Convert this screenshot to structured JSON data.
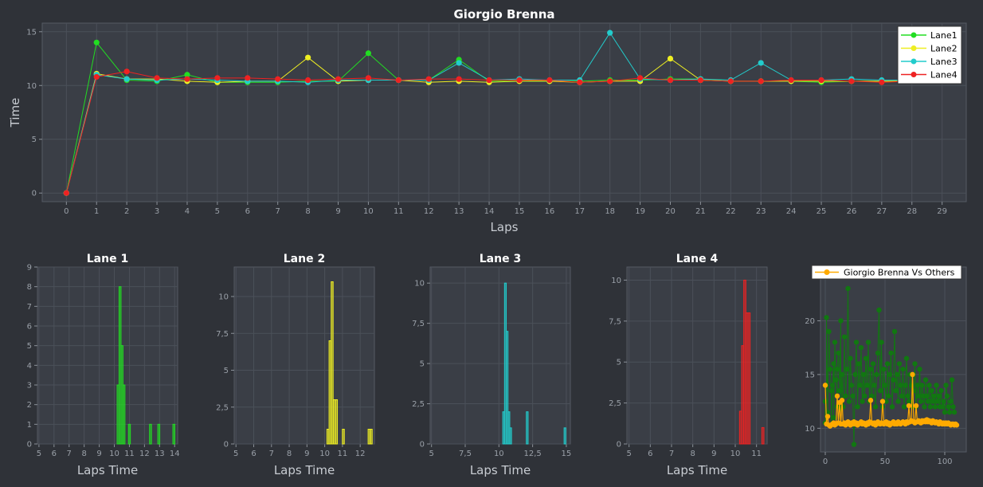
{
  "colors": {
    "background": "#2f3238",
    "plot_bg": "#3a3e46",
    "grid": "#4b5059",
    "lane1": "#22dd22",
    "lane2": "#eeee22",
    "lane3": "#22cccc",
    "lane4": "#ee2222",
    "others": "#117711",
    "highlight": "#ffaa00"
  },
  "chart_data": [
    {
      "id": "main",
      "type": "line",
      "title": "Giorgio Brenna",
      "xlabel": "Laps",
      "ylabel": "Time",
      "xlim": [
        -0.8,
        29.8
      ],
      "ylim": [
        -0.8,
        15.8
      ],
      "xticks": [
        "0",
        "1",
        "2",
        "3",
        "4",
        "5",
        "6",
        "7",
        "8",
        "9",
        "10",
        "11",
        "12",
        "13",
        "14",
        "15",
        "16",
        "17",
        "18",
        "19",
        "20",
        "21",
        "22",
        "23",
        "24",
        "25",
        "26",
        "27",
        "28",
        "29"
      ],
      "yticks": [
        "0",
        "5",
        "10",
        "15"
      ],
      "grid": true,
      "legend": "top-right",
      "x": [
        0,
        1,
        2,
        3,
        4,
        5,
        6,
        7,
        8,
        9,
        10,
        11,
        12,
        13,
        14,
        15,
        16,
        17,
        18,
        19,
        20,
        21,
        22,
        23,
        24,
        25,
        26,
        27,
        28,
        29
      ],
      "series": [
        {
          "name": "Lane1",
          "color": "#22dd22",
          "values": [
            0,
            14.0,
            10.5,
            10.4,
            11.0,
            10.3,
            10.3,
            10.3,
            10.4,
            10.4,
            13.0,
            10.5,
            10.5,
            12.4,
            10.4,
            10.5,
            10.4,
            10.4,
            10.5,
            10.5,
            10.6,
            10.6,
            10.4,
            10.4,
            10.4,
            10.3,
            10.4,
            10.4,
            10.4,
            10.4
          ]
        },
        {
          "name": "Lane2",
          "color": "#eeee22",
          "values": [
            0,
            11.1,
            10.6,
            10.6,
            10.4,
            10.3,
            10.4,
            10.4,
            12.6,
            10.4,
            10.5,
            10.5,
            10.3,
            10.4,
            10.3,
            10.4,
            10.4,
            10.3,
            10.4,
            10.4,
            12.5,
            10.5,
            10.4,
            10.4,
            10.4,
            10.4,
            10.4,
            10.4,
            10.4,
            10.4
          ]
        },
        {
          "name": "Lane3",
          "color": "#22cccc",
          "values": [
            0,
            11.0,
            10.6,
            10.5,
            10.6,
            10.5,
            10.4,
            10.4,
            10.3,
            10.5,
            10.5,
            10.5,
            10.5,
            12.1,
            10.5,
            10.6,
            10.5,
            10.5,
            14.9,
            10.6,
            10.5,
            10.6,
            10.5,
            12.1,
            10.5,
            10.5,
            10.6,
            10.5,
            10.5,
            10.5
          ]
        },
        {
          "name": "Lane4",
          "color": "#ee2222",
          "values": [
            0,
            10.8,
            11.3,
            10.7,
            10.6,
            10.7,
            10.7,
            10.6,
            10.5,
            10.6,
            10.7,
            10.5,
            10.6,
            10.6,
            10.5,
            10.5,
            10.5,
            10.3,
            10.4,
            10.7,
            10.5,
            10.5,
            10.4,
            10.4,
            10.5,
            10.5,
            10.4,
            10.3,
            10.4,
            10.4
          ]
        }
      ]
    },
    {
      "id": "lane1",
      "type": "bar",
      "title": "Lane 1",
      "xlabel": "Laps Time",
      "ylabel": "",
      "color": "#22dd22",
      "xlim": [
        4.9,
        14.2
      ],
      "ylim": [
        0,
        9
      ],
      "xticks": [
        "5",
        "6",
        "7",
        "8",
        "9",
        "10",
        "11",
        "12",
        "13",
        "14"
      ],
      "yticks": [
        "0",
        "1",
        "2",
        "3",
        "4",
        "5",
        "6",
        "7",
        "8",
        "9"
      ],
      "bar_width": 0.13,
      "bins": [
        10.25,
        10.38,
        10.51,
        10.64,
        11.0,
        12.4,
        12.95,
        13.95
      ],
      "values": [
        3,
        8,
        5,
        3,
        1,
        1,
        1,
        1
      ]
    },
    {
      "id": "lane2",
      "type": "bar",
      "title": "Lane 2",
      "xlabel": "Laps Time",
      "ylabel": "",
      "color": "#eeee22",
      "xlim": [
        4.9,
        12.8
      ],
      "ylim": [
        0,
        12
      ],
      "xticks": [
        "5",
        "6",
        "7",
        "8",
        "9",
        "10",
        "11",
        "12"
      ],
      "yticks": [
        "0",
        "2,5",
        "5",
        "7,5",
        "10"
      ],
      "ytick_values": [
        0,
        2.5,
        5,
        7.5,
        10
      ],
      "bar_width": 0.11,
      "bins": [
        10.18,
        10.3,
        10.42,
        10.54,
        10.66,
        11.05,
        12.5,
        12.62
      ],
      "values": [
        1,
        7,
        11,
        3,
        3,
        1,
        1,
        1
      ]
    },
    {
      "id": "lane3",
      "type": "bar",
      "title": "Lane 3",
      "xlabel": "Laps Time",
      "ylabel": "",
      "color": "#22cccc",
      "xlim": [
        4.9,
        15.3
      ],
      "ylim": [
        0,
        11
      ],
      "xticks": [
        "5",
        "7,5",
        "10",
        "12,5",
        "15"
      ],
      "xtick_values": [
        5,
        7.5,
        10,
        12.5,
        15
      ],
      "yticks": [
        "0",
        "2,5",
        "5",
        "7,5",
        "10"
      ],
      "ytick_values": [
        0,
        2.5,
        5,
        7.5,
        10
      ],
      "bar_width": 0.13,
      "bins": [
        10.35,
        10.48,
        10.61,
        10.74,
        10.87,
        12.1,
        14.9
      ],
      "values": [
        2,
        10,
        7,
        2,
        1,
        2,
        1
      ]
    },
    {
      "id": "lane4",
      "type": "bar",
      "title": "Lane 4",
      "xlabel": "Laps Time",
      "ylabel": "",
      "color": "#ee2222",
      "xlim": [
        4.9,
        11.5
      ],
      "ylim": [
        0,
        10.8
      ],
      "xticks": [
        "5",
        "6",
        "7",
        "8",
        "9",
        "10",
        "11"
      ],
      "yticks": [
        "0",
        "2,5",
        "5",
        "7,5",
        "10"
      ],
      "ytick_values": [
        0,
        2.5,
        5,
        7.5,
        10
      ],
      "bar_width": 0.1,
      "bins": [
        10.25,
        10.35,
        10.45,
        10.55,
        10.65,
        11.3
      ],
      "values": [
        2,
        6,
        10,
        8,
        8,
        1
      ]
    },
    {
      "id": "vs",
      "type": "scatter",
      "title": "",
      "xlabel": "",
      "ylabel": "",
      "legend": "top",
      "legend_label": "Giorgio Brenna Vs Others",
      "xlim": [
        -4,
        118
      ],
      "ylim": [
        7.8,
        25
      ],
      "xticks": [
        "0",
        "50",
        "100"
      ],
      "xtick_values": [
        0,
        50,
        100
      ],
      "yticks": [
        "10",
        "15",
        "20"
      ],
      "ytick_values": [
        10,
        15,
        20
      ],
      "others_color": "#117711",
      "others": [
        [
          0,
          10.5
        ],
        [
          0,
          12.5
        ],
        [
          1,
          14.0
        ],
        [
          1,
          20.3
        ],
        [
          2,
          11.5
        ],
        [
          3,
          19.0
        ],
        [
          4,
          15.5
        ],
        [
          5,
          13.5
        ],
        [
          5,
          10.3
        ],
        [
          6,
          14.0
        ],
        [
          7,
          16.0
        ],
        [
          7,
          11.0
        ],
        [
          8,
          18.0
        ],
        [
          9,
          14.5
        ],
        [
          10,
          12.0
        ],
        [
          10,
          15.5
        ],
        [
          11,
          17.0
        ],
        [
          12,
          13.5
        ],
        [
          13,
          20.0
        ],
        [
          13,
          11.8
        ],
        [
          14,
          15.0
        ],
        [
          15,
          12.0
        ],
        [
          16,
          18.5
        ],
        [
          17,
          13.0
        ],
        [
          18,
          15.5
        ],
        [
          19,
          23.0
        ],
        [
          20,
          12.5
        ],
        [
          21,
          16.5
        ],
        [
          22,
          14.0
        ],
        [
          23,
          13.0
        ],
        [
          24,
          8.5
        ],
        [
          25,
          15.0
        ],
        [
          26,
          18.0
        ],
        [
          27,
          12.0
        ],
        [
          28,
          16.0
        ],
        [
          29,
          14.0
        ],
        [
          30,
          17.5
        ],
        [
          31,
          12.5
        ],
        [
          32,
          15.0
        ],
        [
          33,
          13.0
        ],
        [
          34,
          16.5
        ],
        [
          35,
          14.0
        ],
        [
          36,
          18.0
        ],
        [
          37,
          12.5
        ],
        [
          38,
          15.5
        ],
        [
          39,
          13.0
        ],
        [
          40,
          16.0
        ],
        [
          41,
          14.0
        ],
        [
          42,
          12.0
        ],
        [
          43,
          15.0
        ],
        [
          44,
          17.0
        ],
        [
          45,
          21.0
        ],
        [
          46,
          13.5
        ],
        [
          47,
          18.0
        ],
        [
          48,
          12.0
        ],
        [
          49,
          15.5
        ],
        [
          50,
          14.0
        ],
        [
          51,
          12.5
        ],
        [
          52,
          16.0
        ],
        [
          53,
          13.0
        ],
        [
          54,
          15.0
        ],
        [
          55,
          17.0
        ],
        [
          56,
          12.0
        ],
        [
          57,
          14.5
        ],
        [
          58,
          19.0
        ],
        [
          59,
          13.5
        ],
        [
          60,
          15.0
        ],
        [
          61,
          12.5
        ],
        [
          62,
          16.0
        ],
        [
          63,
          14.0
        ],
        [
          64,
          13.0
        ],
        [
          65,
          15.5
        ],
        [
          66,
          12.0
        ],
        [
          67,
          14.0
        ],
        [
          68,
          16.5
        ],
        [
          69,
          13.0
        ],
        [
          70,
          12.5
        ],
        [
          71,
          15.0
        ],
        [
          72,
          14.0
        ],
        [
          73,
          12.0
        ],
        [
          74,
          13.5
        ],
        [
          75,
          16.0
        ],
        [
          76,
          12.0
        ],
        [
          77,
          14.0
        ],
        [
          78,
          13.0
        ],
        [
          79,
          15.5
        ],
        [
          80,
          12.5
        ],
        [
          81,
          14.0
        ],
        [
          82,
          13.0
        ],
        [
          83,
          12.0
        ],
        [
          84,
          14.5
        ],
        [
          85,
          13.0
        ],
        [
          86,
          12.5
        ],
        [
          87,
          14.0
        ],
        [
          88,
          12.0
        ],
        [
          89,
          13.5
        ],
        [
          90,
          12.5
        ],
        [
          91,
          13.0
        ],
        [
          92,
          12.0
        ],
        [
          93,
          14.0
        ],
        [
          94,
          12.5
        ],
        [
          95,
          13.0
        ],
        [
          96,
          12.0
        ],
        [
          97,
          13.5
        ],
        [
          98,
          12.0
        ],
        [
          99,
          12.5
        ],
        [
          100,
          11.5
        ],
        [
          101,
          14.0
        ],
        [
          102,
          13.0
        ],
        [
          103,
          12.0
        ],
        [
          104,
          11.5
        ],
        [
          105,
          12.5
        ],
        [
          106,
          14.5
        ],
        [
          107,
          12.0
        ],
        [
          108,
          11.5
        ]
      ],
      "highlight_color": "#ffaa00",
      "highlight": [
        [
          0,
          14.0
        ],
        [
          1,
          10.4
        ],
        [
          2,
          11.1
        ],
        [
          3,
          10.3
        ],
        [
          4,
          10.2
        ],
        [
          5,
          10.3
        ],
        [
          6,
          10.4
        ],
        [
          7,
          10.5
        ],
        [
          8,
          10.3
        ],
        [
          9,
          10.4
        ],
        [
          10,
          13.0
        ],
        [
          11,
          10.5
        ],
        [
          12,
          12.4
        ],
        [
          13,
          10.4
        ],
        [
          14,
          12.6
        ],
        [
          15,
          10.4
        ],
        [
          16,
          10.5
        ],
        [
          17,
          10.3
        ],
        [
          18,
          10.5
        ],
        [
          19,
          10.6
        ],
        [
          20,
          10.4
        ],
        [
          21,
          10.3
        ],
        [
          22,
          10.5
        ],
        [
          23,
          10.4
        ],
        [
          24,
          10.6
        ],
        [
          25,
          10.4
        ],
        [
          26,
          10.5
        ],
        [
          27,
          10.3
        ],
        [
          28,
          10.4
        ],
        [
          29,
          10.5
        ],
        [
          30,
          10.6
        ],
        [
          31,
          10.4
        ],
        [
          32,
          10.5
        ],
        [
          33,
          10.4
        ],
        [
          34,
          10.3
        ],
        [
          35,
          10.5
        ],
        [
          36,
          10.4
        ],
        [
          37,
          10.6
        ],
        [
          38,
          12.6
        ],
        [
          39,
          10.5
        ],
        [
          40,
          10.4
        ],
        [
          41,
          10.5
        ],
        [
          42,
          10.3
        ],
        [
          43,
          10.4
        ],
        [
          44,
          10.6
        ],
        [
          45,
          10.5
        ],
        [
          46,
          10.4
        ],
        [
          47,
          10.5
        ],
        [
          48,
          12.5
        ],
        [
          49,
          10.4
        ],
        [
          50,
          10.5
        ],
        [
          51,
          10.6
        ],
        [
          52,
          10.4
        ],
        [
          53,
          10.5
        ],
        [
          54,
          10.3
        ],
        [
          55,
          10.4
        ],
        [
          56,
          10.5
        ],
        [
          57,
          10.6
        ],
        [
          58,
          10.4
        ],
        [
          59,
          10.5
        ],
        [
          60,
          10.4
        ],
        [
          61,
          10.6
        ],
        [
          62,
          10.5
        ],
        [
          63,
          10.4
        ],
        [
          64,
          10.5
        ],
        [
          65,
          10.6
        ],
        [
          66,
          10.5
        ],
        [
          67,
          10.4
        ],
        [
          68,
          10.6
        ],
        [
          69,
          10.5
        ],
        [
          70,
          12.1
        ],
        [
          71,
          10.6
        ],
        [
          72,
          10.7
        ],
        [
          73,
          15.0
        ],
        [
          74,
          10.6
        ],
        [
          75,
          10.5
        ],
        [
          76,
          12.1
        ],
        [
          77,
          10.6
        ],
        [
          78,
          10.7
        ],
        [
          79,
          10.6
        ],
        [
          80,
          10.5
        ],
        [
          81,
          10.7
        ],
        [
          82,
          10.6
        ],
        [
          83,
          10.7
        ],
        [
          84,
          10.6
        ],
        [
          85,
          10.8
        ],
        [
          86,
          10.6
        ],
        [
          87,
          10.7
        ],
        [
          88,
          10.6
        ],
        [
          89,
          10.5
        ],
        [
          90,
          10.7
        ],
        [
          91,
          10.6
        ],
        [
          92,
          10.5
        ],
        [
          93,
          10.6
        ],
        [
          94,
          10.5
        ],
        [
          95,
          10.4
        ],
        [
          96,
          10.6
        ],
        [
          97,
          10.5
        ],
        [
          98,
          10.4
        ],
        [
          99,
          10.5
        ],
        [
          100,
          10.4
        ],
        [
          101,
          10.5
        ],
        [
          102,
          10.4
        ],
        [
          103,
          10.5
        ],
        [
          104,
          10.4
        ],
        [
          105,
          10.3
        ],
        [
          106,
          10.4
        ],
        [
          107,
          10.4
        ],
        [
          108,
          10.3
        ],
        [
          109,
          10.4
        ],
        [
          110,
          10.3
        ]
      ]
    }
  ]
}
